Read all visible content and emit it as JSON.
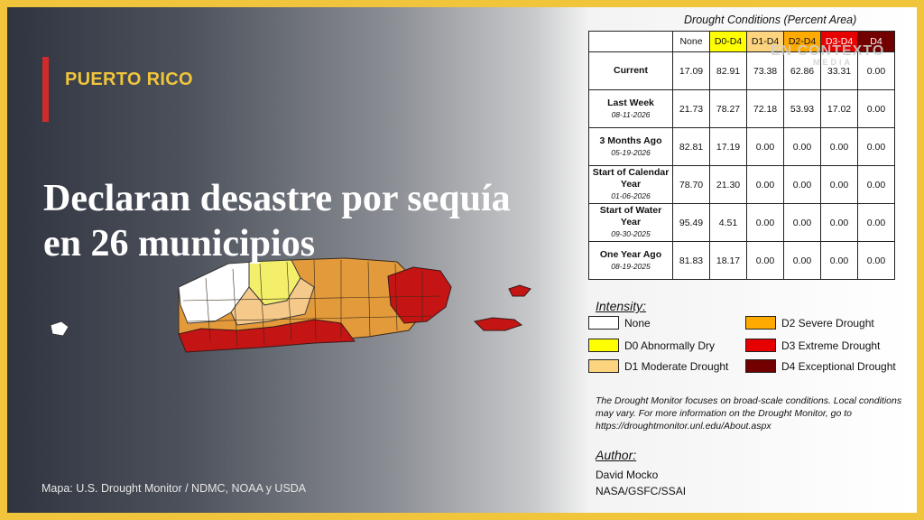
{
  "header": {
    "kicker": "PUERTO RICO",
    "headline": "Declaran desastre por sequía en 26 municipios"
  },
  "credit": "Mapa: U.S. Drought Monitor / NDMC, NOAA y USDA",
  "table": {
    "title": "Drought Conditions (Percent Area)",
    "columns": [
      "None",
      "D0-D4",
      "D1-D4",
      "D2-D4",
      "D3-D4",
      "D4"
    ],
    "rows": [
      {
        "label": "Current",
        "date": "",
        "values": [
          "17.09",
          "82.91",
          "73.38",
          "62.86",
          "33.31",
          "0.00"
        ]
      },
      {
        "label": "Last Week",
        "date": "08-11-2026",
        "values": [
          "21.73",
          "78.27",
          "72.18",
          "53.93",
          "17.02",
          "0.00"
        ]
      },
      {
        "label": "3 Months Ago",
        "date": "05-19-2026",
        "values": [
          "82.81",
          "17.19",
          "0.00",
          "0.00",
          "0.00",
          "0.00"
        ]
      },
      {
        "label": "Start of Calendar Year",
        "date": "01-06-2026",
        "values": [
          "78.70",
          "21.30",
          "0.00",
          "0.00",
          "0.00",
          "0.00"
        ]
      },
      {
        "label": "Start of Water Year",
        "date": "09-30-2025",
        "values": [
          "95.49",
          "4.51",
          "0.00",
          "0.00",
          "0.00",
          "0.00"
        ]
      },
      {
        "label": "One Year Ago",
        "date": "08-19-2025",
        "values": [
          "81.83",
          "18.17",
          "0.00",
          "0.00",
          "0.00",
          "0.00"
        ]
      }
    ]
  },
  "watermark": {
    "line1": "EN CONTEXTO",
    "line2": "MEDIA"
  },
  "legend": {
    "title": "Intensity:",
    "items": [
      {
        "label": "None",
        "color": "#ffffff"
      },
      {
        "label": "D0 Abnormally Dry",
        "color": "#ffff00"
      },
      {
        "label": "D1 Moderate Drought",
        "color": "#fcd37f"
      },
      {
        "label": "D2 Severe Drought",
        "color": "#ffaa00"
      },
      {
        "label": "D3 Extreme Drought",
        "color": "#e60000"
      },
      {
        "label": "D4 Exceptional Drought",
        "color": "#730000"
      }
    ]
  },
  "note": "The Drought Monitor focuses on broad-scale conditions. Local conditions may vary. For more information on the Drought Monitor, go to https://droughtmonitor.unl.edu/About.aspx",
  "author": {
    "title": "Author:",
    "name": "David Mocko",
    "org": "NASA/GSFC/SSAI"
  },
  "colors": {
    "frame": "#f0c53b",
    "accent": "#d12b2b",
    "kicker": "#f0c53b"
  }
}
